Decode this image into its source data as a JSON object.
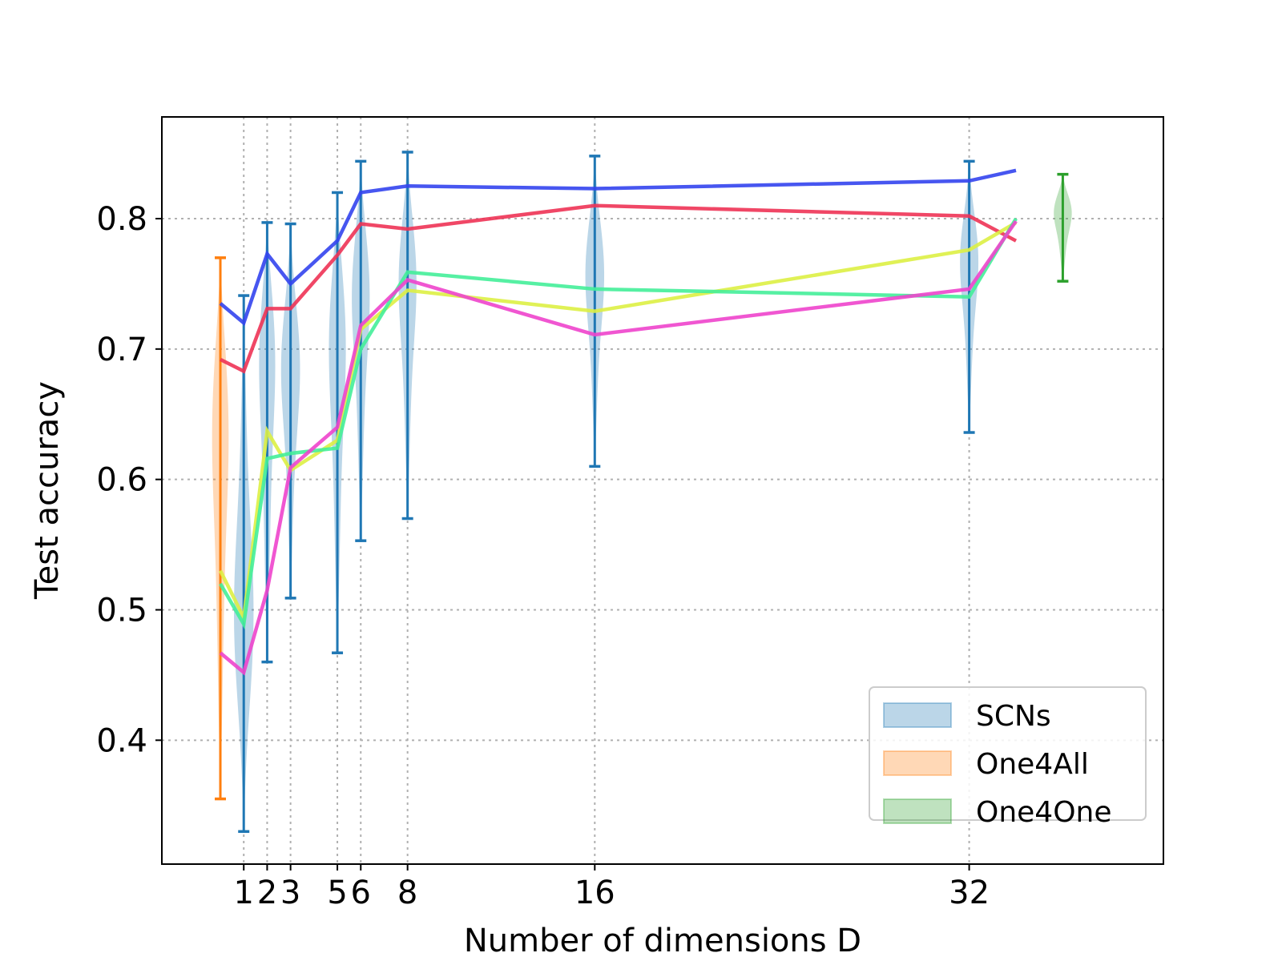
{
  "chart_data": {
    "type": "line",
    "title": "",
    "xlabel": "Number of dimensions D",
    "ylabel": "Test accuracy",
    "xlim": [
      -2.5,
      40.3
    ],
    "ylim": [
      0.305,
      0.878
    ],
    "grid": true,
    "x_ticks": [
      1,
      2,
      3,
      5,
      6,
      8,
      16,
      32
    ],
    "x_tick_labels": [
      "1",
      "2",
      "3",
      "5",
      "6",
      "8",
      "16",
      "32"
    ],
    "y_ticks": [
      0.4,
      0.5,
      0.6,
      0.7,
      0.8
    ],
    "y_tick_labels": [
      "0.4",
      "0.5",
      "0.6",
      "0.7",
      "0.8"
    ],
    "legend": {
      "position": "lower-right",
      "entries": [
        {
          "label": "SCNs",
          "color": "#1f77b4"
        },
        {
          "label": "One4All",
          "color": "#ff7f0e"
        },
        {
          "label": "One4One",
          "color": "#2ca02c"
        }
      ]
    },
    "distributions": [
      {
        "group": "SCNs",
        "color": "#1f77b4",
        "x": 1,
        "min": 0.33,
        "max": 0.741,
        "peak": 0.48
      },
      {
        "group": "SCNs",
        "color": "#1f77b4",
        "x": 2,
        "min": 0.46,
        "max": 0.797,
        "peak": 0.72
      },
      {
        "group": "SCNs",
        "color": "#1f77b4",
        "x": 3,
        "min": 0.509,
        "max": 0.796,
        "peak": 0.7
      },
      {
        "group": "SCNs",
        "color": "#1f77b4",
        "x": 5,
        "min": 0.467,
        "max": 0.82,
        "peak": 0.73
      },
      {
        "group": "SCNs",
        "color": "#1f77b4",
        "x": 6,
        "min": 0.553,
        "max": 0.844,
        "peak": 0.76
      },
      {
        "group": "SCNs",
        "color": "#1f77b4",
        "x": 8,
        "min": 0.57,
        "max": 0.851,
        "peak": 0.77
      },
      {
        "group": "SCNs",
        "color": "#1f77b4",
        "x": 16,
        "min": 0.61,
        "max": 0.848,
        "peak": 0.77
      },
      {
        "group": "SCNs",
        "color": "#1f77b4",
        "x": 32,
        "min": 0.636,
        "max": 0.844,
        "peak": 0.78
      },
      {
        "group": "One4All",
        "color": "#ff7f0e",
        "x": 0,
        "min": 0.355,
        "max": 0.77,
        "peak": 0.67
      },
      {
        "group": "One4One",
        "color": "#2ca02c",
        "x": 36,
        "min": 0.752,
        "max": 0.834,
        "peak": 0.81
      }
    ],
    "series": [
      {
        "color": "#3344ee",
        "x": [
          0,
          1,
          2,
          3,
          5,
          6,
          8,
          16,
          32,
          34
        ],
        "values": [
          0.735,
          0.72,
          0.773,
          0.75,
          0.783,
          0.82,
          0.825,
          0.823,
          0.829,
          0.837
        ]
      },
      {
        "color": "#ee3355",
        "x": [
          0,
          1,
          2,
          3,
          5,
          6,
          8,
          16,
          32,
          34
        ],
        "values": [
          0.692,
          0.683,
          0.731,
          0.731,
          0.772,
          0.796,
          0.792,
          0.81,
          0.802,
          0.783
        ]
      },
      {
        "color": "#ddf044",
        "x": [
          0,
          1,
          2,
          3,
          5,
          6,
          8,
          16,
          32,
          34
        ],
        "values": [
          0.53,
          0.494,
          0.637,
          0.607,
          0.63,
          0.715,
          0.745,
          0.729,
          0.776,
          0.797
        ]
      },
      {
        "color": "#44ee99",
        "x": [
          0,
          1,
          2,
          3,
          5,
          6,
          8,
          16,
          32,
          34
        ],
        "values": [
          0.52,
          0.489,
          0.616,
          0.62,
          0.624,
          0.7,
          0.759,
          0.746,
          0.74,
          0.8
        ]
      },
      {
        "color": "#ee44cc",
        "x": [
          0,
          1,
          2,
          3,
          5,
          6,
          8,
          16,
          32,
          34
        ],
        "values": [
          0.467,
          0.452,
          0.515,
          0.609,
          0.64,
          0.718,
          0.753,
          0.711,
          0.746,
          0.798
        ]
      }
    ]
  }
}
